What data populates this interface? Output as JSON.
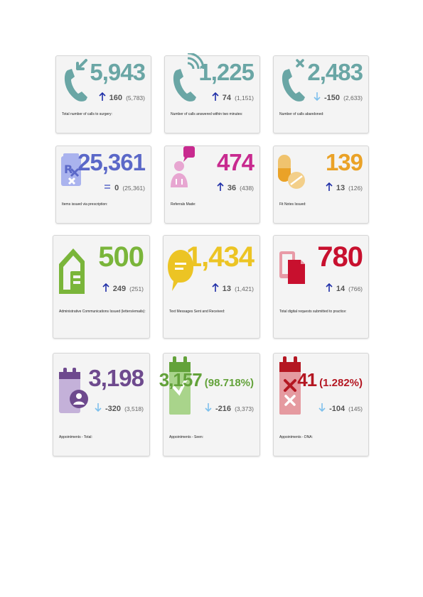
{
  "colors": {
    "calls": "#6aa6a5",
    "prescription": "#5b68c8",
    "referrals": "#c82a8f",
    "fitnotes": "#eaa227",
    "admin": "#7ab53a",
    "text": "#ecc424",
    "digital": "#c8102e",
    "appointments": "#6e4a8e",
    "seen": "#63a23a",
    "dna": "#b41722",
    "arrow_up": "#1f2fa8",
    "arrow_down": "#7ec0ec"
  },
  "cards": [
    {
      "icon": "phone-incoming-icon",
      "value": "5,943",
      "trend": "up",
      "delta": "160",
      "previous": "(5,783)",
      "label": "Total number of calls to surgery:"
    },
    {
      "icon": "phone-answered-icon",
      "value": "1,225",
      "trend": "up",
      "delta": "74",
      "previous": "(1,151)",
      "label": "Number of calls answered within two minutes:"
    },
    {
      "icon": "phone-abandoned-icon",
      "value": "2,483",
      "trend": "down",
      "delta": "-150",
      "previous": "(2,633)",
      "label": "Number of calls abandoned:"
    },
    {
      "icon": "prescription-icon",
      "value": "25,361",
      "trend": "same",
      "delta": "0",
      "previous": "(25,361)",
      "label": "Items issued via prescription:"
    },
    {
      "icon": "referral-icon",
      "value": "474",
      "trend": "up",
      "delta": "36",
      "previous": "(438)",
      "label": "Referrals Made:"
    },
    {
      "icon": "pills-icon",
      "value": "139",
      "trend": "up",
      "delta": "13",
      "previous": "(126)",
      "label": "Fit Notes Issued:"
    },
    {
      "icon": "house-letter-icon",
      "value": "500",
      "trend": "up",
      "delta": "249",
      "previous": "(251)",
      "label": "Administrative Communications Issued (letters/emails):"
    },
    {
      "icon": "speech-bubble-icon",
      "value": "1,434",
      "trend": "up",
      "delta": "13",
      "previous": "(1,421)",
      "label": "Text Messages Sent and Received:"
    },
    {
      "icon": "digital-request-icon",
      "value": "780",
      "trend": "up",
      "delta": "14",
      "previous": "(766)",
      "label": "Total digital requests submitted to practice:"
    },
    {
      "icon": "calendar-person-icon",
      "value": "3,198",
      "pct": "",
      "trend": "down",
      "delta": "-320",
      "previous": "(3,518)",
      "label": "Appointments - Total:"
    },
    {
      "icon": "calendar-check-icon",
      "value": "3,157",
      "pct": "(98.718%)",
      "trend": "down",
      "delta": "-216",
      "previous": "(3,373)",
      "label": "Appointments - Seen:"
    },
    {
      "icon": "calendar-cross-icon",
      "value": "41",
      "pct": "(1.282%)",
      "trend": "down",
      "delta": "-104",
      "previous": "(145)",
      "label": "Appointments - DNA:"
    }
  ]
}
